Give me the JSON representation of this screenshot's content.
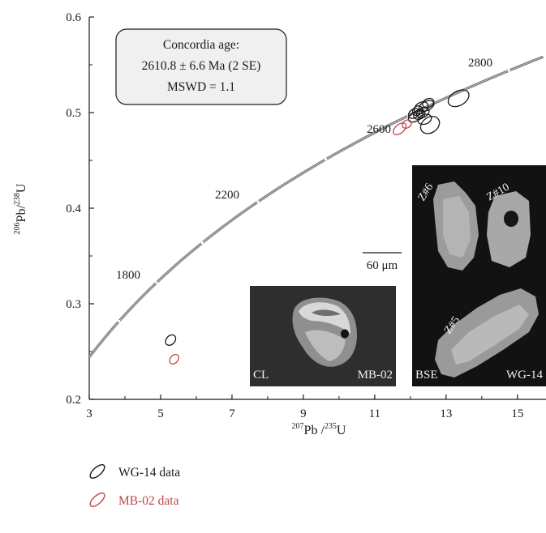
{
  "chart_data": {
    "type": "scatter",
    "subtype": "concordia",
    "xlabel": {
      "sup1": "207",
      "base1": "Pb /",
      "sup2": "235",
      "base2": "U"
    },
    "ylabel": {
      "sup1": "206",
      "base1": "Pb/",
      "sup2": "238",
      "base2": "U"
    },
    "xlim": [
      3,
      15.8
    ],
    "ylim": [
      0.2,
      0.6
    ],
    "xticks": [
      "3",
      "5",
      "7",
      "9",
      "11",
      "13",
      "15"
    ],
    "yticks": [
      "0.2",
      "0.3",
      "0.4",
      "0.5",
      "0.6"
    ],
    "concordia_age_labels": [
      "1800",
      "2200",
      "2600",
      "2800"
    ],
    "annotation_box": [
      "Concordia age:",
      "2610.8 ± 6.6 Ma (2 SE)",
      "MSWD = 1.1"
    ],
    "series": [
      {
        "name": "WG-14 data",
        "color": "#1a1a1a",
        "ellipses": [
          {
            "x": 5.28,
            "y": 0.262,
            "rx": 0.22,
            "ry": 0.0045,
            "angle": 48
          },
          {
            "x": 12.3,
            "y": 0.505,
            "rx": 0.28,
            "ry": 0.0055,
            "angle": 35
          },
          {
            "x": 12.35,
            "y": 0.5,
            "rx": 0.25,
            "ry": 0.005,
            "angle": 30
          },
          {
            "x": 12.25,
            "y": 0.498,
            "rx": 0.22,
            "ry": 0.0048,
            "angle": 25
          },
          {
            "x": 12.15,
            "y": 0.496,
            "rx": 0.3,
            "ry": 0.0048,
            "angle": 30
          },
          {
            "x": 12.4,
            "y": 0.493,
            "rx": 0.26,
            "ry": 0.005,
            "angle": 20
          },
          {
            "x": 12.2,
            "y": 0.502,
            "rx": 0.2,
            "ry": 0.0045,
            "angle": 40
          },
          {
            "x": 12.45,
            "y": 0.507,
            "rx": 0.3,
            "ry": 0.0048,
            "angle": 25
          },
          {
            "x": 12.1,
            "y": 0.499,
            "rx": 0.22,
            "ry": 0.0045,
            "angle": 35
          },
          {
            "x": 12.55,
            "y": 0.487,
            "rx": 0.38,
            "ry": 0.008,
            "angle": 35
          },
          {
            "x": 13.35,
            "y": 0.515,
            "rx": 0.42,
            "ry": 0.0075,
            "angle": 30
          },
          {
            "x": 12.5,
            "y": 0.51,
            "rx": 0.22,
            "ry": 0.0045,
            "angle": 25
          }
        ]
      },
      {
        "name": "MB-02 data",
        "color": "#c0454a",
        "ellipses": [
          {
            "x": 5.38,
            "y": 0.242,
            "rx": 0.2,
            "ry": 0.004,
            "angle": 50
          },
          {
            "x": 11.7,
            "y": 0.483,
            "rx": 0.28,
            "ry": 0.0045,
            "angle": 40
          },
          {
            "x": 11.9,
            "y": 0.488,
            "rx": 0.18,
            "ry": 0.004,
            "angle": 35
          }
        ]
      }
    ],
    "legend": {
      "placement": "bottom-left"
    },
    "inset_cl": {
      "labels": [
        "CL",
        "MB-02"
      ]
    },
    "inset_bse": {
      "labels": [
        "BSE",
        "WG-14"
      ],
      "grains": [
        "Z#6",
        "Z#10",
        "Z#5"
      ]
    },
    "scale_bar": "60 μm"
  }
}
